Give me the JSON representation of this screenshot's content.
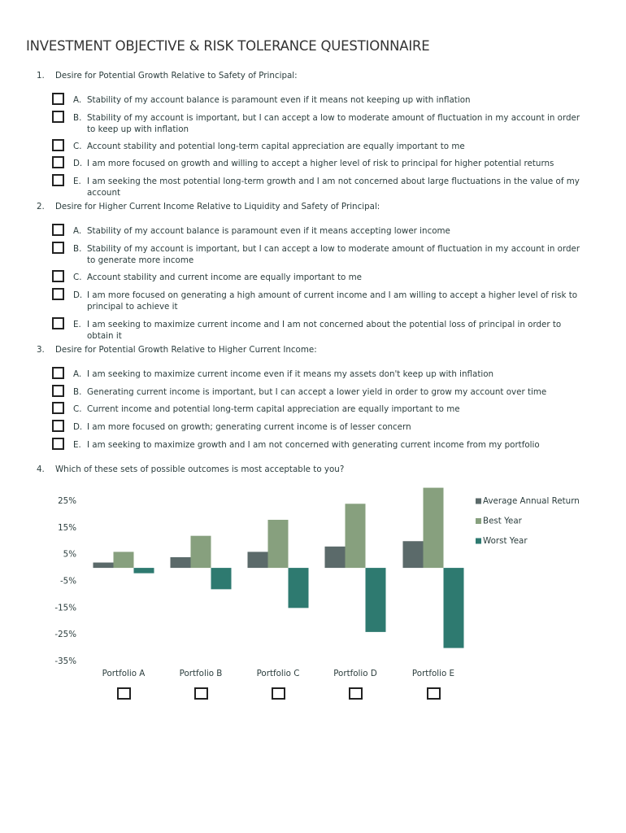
{
  "title": "INVESTMENT OBJECTIVE & RISK TOLERANCE QUESTIONNAIRE",
  "questions": [
    {
      "number": "1.",
      "text": "Desire for Potential Growth Relative to Safety of Principal:",
      "options": [
        {
          "letter": "A.",
          "text": "Stability of my account balance is paramount even if it means not keeping up with inflation"
        },
        {
          "letter": "B.",
          "text": "Stability of my account is important, but I can accept a low to moderate amount of fluctuation in my account in order to keep up with inflation"
        },
        {
          "letter": "C.",
          "text": "Account stability and potential long-term capital appreciation are equally important to me"
        },
        {
          "letter": "D.",
          "text": "I am more focused on growth and willing to accept a higher level of risk to principal for higher potential returns"
        },
        {
          "letter": "E.",
          "text": "I am seeking the most potential long-term growth and I am not concerned about large fluctuations in the value of my account"
        }
      ]
    },
    {
      "number": "2.",
      "text": "Desire for Higher Current Income Relative to Liquidity and Safety of Principal:",
      "options": [
        {
          "letter": "A.",
          "text": "Stability of my account balance is paramount even if it means accepting lower income"
        },
        {
          "letter": "B.",
          "text": "Stability of my account is important, but I can accept a low to moderate amount of fluctuation in my account in order to generate more income"
        },
        {
          "letter": "C.",
          "text": "Account stability and current income are equally important to me"
        },
        {
          "letter": "D.",
          "text": "I am more focused on generating a high amount of current income and I am willing to accept a higher level of risk to principal to achieve it"
        },
        {
          "letter": "E.",
          "text": "I am seeking to maximize current income and I am not concerned about the potential loss of principal in order to obtain it"
        }
      ]
    },
    {
      "number": "3.",
      "text": "Desire for Potential Growth Relative to Higher Current Income:",
      "options": [
        {
          "letter": "A.",
          "text": "I am seeking to maximize current income even if it means my assets don't keep up with inflation"
        },
        {
          "letter": "B.",
          "text": "Generating current income is important, but I can accept a lower yield in order to grow my account over time"
        },
        {
          "letter": "C.",
          "text": "Current income and potential long-term capital appreciation are equally important to me"
        },
        {
          "letter": "D.",
          "text": "I am more focused on growth; generating current income is of lesser concern"
        },
        {
          "letter": "E.",
          "text": "I am seeking to maximize growth and I am not concerned with generating current income from my portfolio"
        }
      ]
    },
    {
      "number": "4.",
      "text": "Which of these sets of possible outcomes is most acceptable to you?"
    }
  ],
  "chart_data": {
    "type": "bar",
    "categories": [
      "Portfolio A",
      "Portfolio B",
      "Portfolio C",
      "Portfolio D",
      "Portfolio E"
    ],
    "series": [
      {
        "name": "Average Annual Return",
        "color": "#5b6a6a",
        "values": [
          2,
          4,
          6,
          8,
          10
        ]
      },
      {
        "name": "Best Year",
        "color": "#87a07e",
        "values": [
          6,
          12,
          18,
          24,
          30
        ]
      },
      {
        "name": "Worst Year",
        "color": "#2e7a70",
        "values": [
          -2,
          -8,
          -15,
          -24,
          -30
        ]
      }
    ],
    "ylim": [
      -35,
      30
    ],
    "yticks": [
      {
        "value": 25,
        "label": "25%"
      },
      {
        "value": 15,
        "label": "15%"
      },
      {
        "value": 5,
        "label": "5%"
      },
      {
        "value": -5,
        "label": "-5%"
      },
      {
        "value": -15,
        "label": "-15%"
      },
      {
        "value": -25,
        "label": "-25%"
      },
      {
        "value": -35,
        "label": "-35%"
      }
    ]
  }
}
